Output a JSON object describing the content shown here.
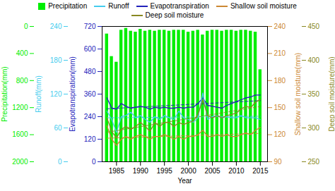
{
  "chart_data": {
    "type": "bar",
    "xlabel": "Year",
    "x": [
      1983,
      1984,
      1985,
      1986,
      1987,
      1988,
      1989,
      1990,
      1991,
      1992,
      1993,
      1994,
      1995,
      1996,
      1997,
      1998,
      1999,
      2000,
      2001,
      2002,
      2003,
      2004,
      2005,
      2006,
      2007,
      2008,
      2009,
      2010,
      2011,
      2012,
      2013,
      2014,
      2015
    ],
    "xlim": [
      1982.0,
      2016.5
    ],
    "xticks": [
      1985,
      1990,
      1995,
      2000,
      2005,
      2010,
      2015
    ],
    "ylabel": "Evapotranspiration(mm)",
    "ylim": [
      0,
      720
    ],
    "yticks": [
      0,
      120,
      240,
      360,
      480,
      600,
      720
    ],
    "y2label": "Runoff(mm)",
    "y2lim": [
      0,
      240
    ],
    "y2ticks": [
      0,
      60,
      120,
      180,
      240
    ],
    "y3label": "Shallow soil moisture(mm)",
    "y3lim": [
      90,
      240
    ],
    "y3ticks": [
      90,
      120,
      150,
      180,
      210,
      240
    ],
    "y4label": "Deep soil moisture(mm)",
    "y4lim": [
      250,
      450
    ],
    "y4ticks": [
      250,
      300,
      350,
      400,
      450
    ],
    "y5label": "Precipitation(mm)",
    "y5lim": [
      2000,
      0
    ],
    "y5ticks": [
      0,
      400,
      800,
      1200,
      1600,
      2000
    ],
    "legend": "top",
    "series": [
      {
        "name": "Precipitation",
        "type": "bar",
        "axis": "y",
        "color": "#00ee00",
        "values": [
          680,
          560,
          530,
          700,
          710,
          695,
          690,
          705,
          695,
          700,
          695,
          700,
          700,
          695,
          700,
          700,
          700,
          690,
          695,
          700,
          675,
          695,
          700,
          700,
          695,
          700,
          700,
          695,
          700,
          700,
          695,
          690,
          490
        ]
      },
      {
        "name": "Runoff",
        "type": "line",
        "axis": "y2",
        "color": "#44ccee",
        "values": [
          90,
          75,
          52,
          80,
          82,
          88,
          78,
          82,
          75,
          70,
          80,
          75,
          82,
          78,
          75,
          90,
          78,
          75,
          70,
          78,
          122,
          75,
          80,
          82,
          78,
          80,
          78,
          78,
          82,
          78,
          78,
          78,
          75
        ]
      },
      {
        "name": "Evapotranspiration",
        "type": "line",
        "axis": "y",
        "color": "#2222bb",
        "values": [
          340,
          285,
          280,
          310,
          295,
          285,
          290,
          295,
          290,
          280,
          290,
          285,
          290,
          285,
          285,
          290,
          285,
          290,
          290,
          310,
          340,
          300,
          295,
          290,
          285,
          300,
          310,
          320,
          330,
          340,
          345,
          355,
          355
        ]
      },
      {
        "name": "Shallow soil moisture",
        "type": "line",
        "axis": "y3",
        "color": "#cc8833",
        "values": [
          130,
          115,
          108,
          115,
          118,
          115,
          118,
          120,
          118,
          115,
          118,
          118,
          120,
          118,
          115,
          118,
          115,
          118,
          118,
          120,
          125,
          118,
          118,
          120,
          118,
          120,
          118,
          118,
          120,
          122,
          120,
          125,
          128
        ]
      },
      {
        "name": "Deep soil moisture",
        "type": "line",
        "axis": "y4",
        "color": "#888822",
        "values": [
          315,
          295,
          285,
          298,
          302,
          298,
          302,
          308,
          302,
          295,
          308,
          302,
          308,
          308,
          302,
          308,
          305,
          308,
          310,
          320,
          342,
          318,
          315,
          318,
          315,
          318,
          320,
          322,
          328,
          332,
          330,
          338,
          342
        ]
      }
    ]
  }
}
